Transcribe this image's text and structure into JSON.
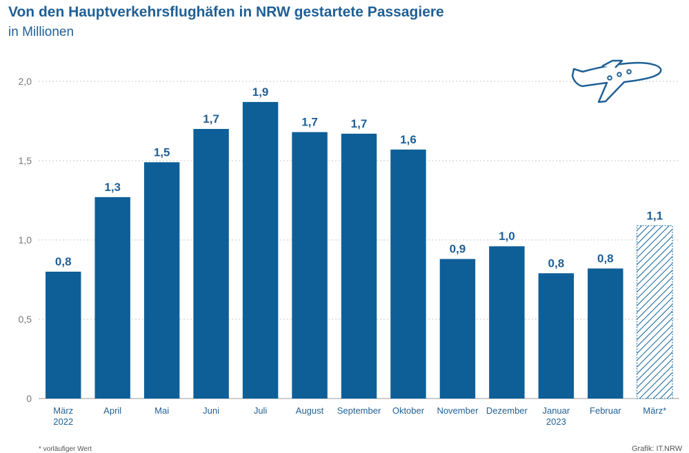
{
  "header": {
    "title": "Von den Hauptverkehrsflughäfen in NRW gestartete Passagiere",
    "subtitle": "in Millionen"
  },
  "footer": {
    "footnote": "* vorläufiger Wert",
    "source": "Grafik: IT.NRW"
  },
  "icon": {
    "name": "airplane-icon"
  },
  "colors": {
    "bar": "#0e5f98",
    "text": "#1f5f95",
    "axis_text": "#777777",
    "grid": "#c8c8c8"
  },
  "chart_data": {
    "type": "bar",
    "title": "Von den Hauptverkehrsflughäfen in NRW gestartete Passagiere",
    "subtitle": "in Millionen",
    "xlabel": "",
    "ylabel": "",
    "ylim": [
      0,
      2.0
    ],
    "yticks": [
      "0",
      "0,5",
      "1,0",
      "1,5",
      "2,0"
    ],
    "ytick_values": [
      0,
      0.5,
      1.0,
      1.5,
      2.0
    ],
    "grid": true,
    "categories": [
      [
        "März",
        "2022"
      ],
      [
        "April"
      ],
      [
        "Mai"
      ],
      [
        "Juni"
      ],
      [
        "Juli"
      ],
      [
        "August"
      ],
      [
        "September"
      ],
      [
        "Oktober"
      ],
      [
        "November"
      ],
      [
        "Dezember"
      ],
      [
        "Januar",
        "2023"
      ],
      [
        "Februar"
      ],
      [
        "März*"
      ]
    ],
    "values": [
      0.8,
      1.27,
      1.49,
      1.7,
      1.87,
      1.68,
      1.67,
      1.57,
      0.88,
      0.96,
      0.79,
      0.82,
      1.09
    ],
    "value_labels": [
      "0,8",
      "1,3",
      "1,5",
      "1,7",
      "1,9",
      "1,7",
      "1,7",
      "1,6",
      "0,9",
      "1,0",
      "0,8",
      "0,8",
      "1,1"
    ],
    "provisional": [
      false,
      false,
      false,
      false,
      false,
      false,
      false,
      false,
      false,
      false,
      false,
      false,
      true
    ]
  }
}
